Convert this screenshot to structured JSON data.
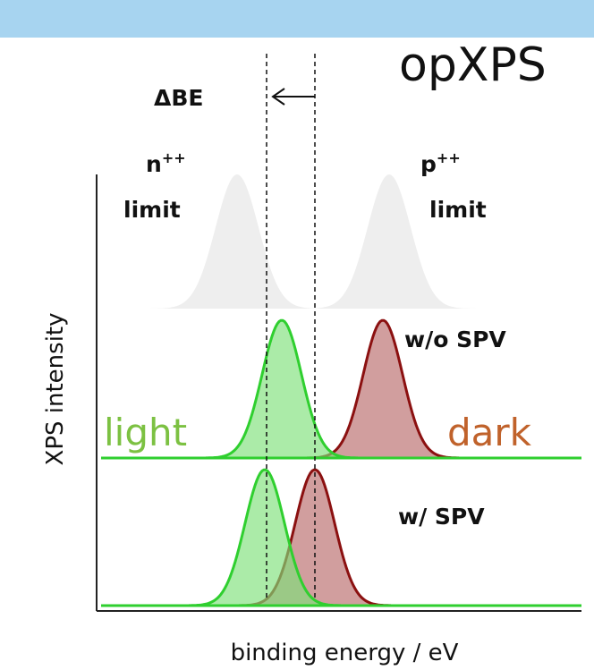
{
  "title": "opXPS",
  "delta_label": "ΔBE",
  "n_limit": {
    "base": "n",
    "sup": "++",
    "line2": "limit"
  },
  "p_limit": {
    "base": "p",
    "sup": "++",
    "line2": "limit"
  },
  "panels": {
    "middle": "w/o SPV",
    "bottom": "w/ SPV"
  },
  "legend": {
    "light": "light",
    "dark": "dark"
  },
  "axes": {
    "y_label": "XPS intensity",
    "x_label": "binding energy / eV"
  }
}
